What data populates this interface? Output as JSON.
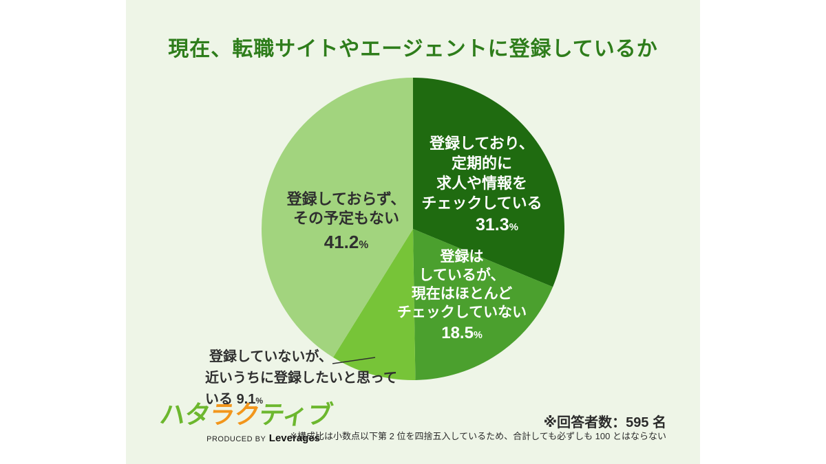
{
  "title": "現在、転職サイトやエージェントに登録しているか",
  "chart_data": {
    "type": "pie",
    "title": "現在、転職サイトやエージェントに登録しているか",
    "unit": "%",
    "start_angle_deg": 0,
    "direction": "clockwise",
    "slices": [
      {
        "label": "登録しており、定期的に求人や情報をチェックしている",
        "label_lines": [
          "登録しており、",
          "定期的に",
          "求人や情報を",
          "チェックしている"
        ],
        "value": 31.3,
        "color": "#1f6b10",
        "text_color": "#ffffff"
      },
      {
        "label": "登録はしているが、現在はほとんどチェックしていない",
        "label_lines": [
          "登録は",
          "しているが、",
          "現在はほとんど",
          "チェックしていない"
        ],
        "value": 18.5,
        "color": "#4ba02e",
        "text_color": "#ffffff"
      },
      {
        "label": "登録していないが、近いうちに登録したいと思っている",
        "label_lines": [
          "登録していないが、",
          "近いうちに登録したいと思っている"
        ],
        "value": 9.1,
        "color": "#77c438",
        "text_color": "#2f2f2f"
      },
      {
        "label": "登録しておらず、その予定もない",
        "label_lines": [
          "登録しておらず、",
          "その予定もない"
        ],
        "value": 41.2,
        "color": "#a2d47e",
        "text_color": "#2f2f2f"
      }
    ]
  },
  "footer": {
    "logo": {
      "parts": [
        {
          "text": "ハタ",
          "color": "#6cb72e"
        },
        {
          "text": "ラク",
          "color": "#f2961b"
        },
        {
          "text": "ティブ",
          "color": "#6cb72e"
        }
      ],
      "produced_by": "PRODUCED BY",
      "company": "Leverages"
    },
    "respondents_note": "※回答者数：595 名",
    "rounding_note": "※構成比は小数点以下第 2 位を四捨五入しているため、合計しても必ずしも 100 とはならない"
  },
  "colors": {
    "page_background": "#ffffff",
    "card_background": "#eef5e7",
    "title_text": "#2e7d1b",
    "dark_text": "#2f2f2f"
  }
}
